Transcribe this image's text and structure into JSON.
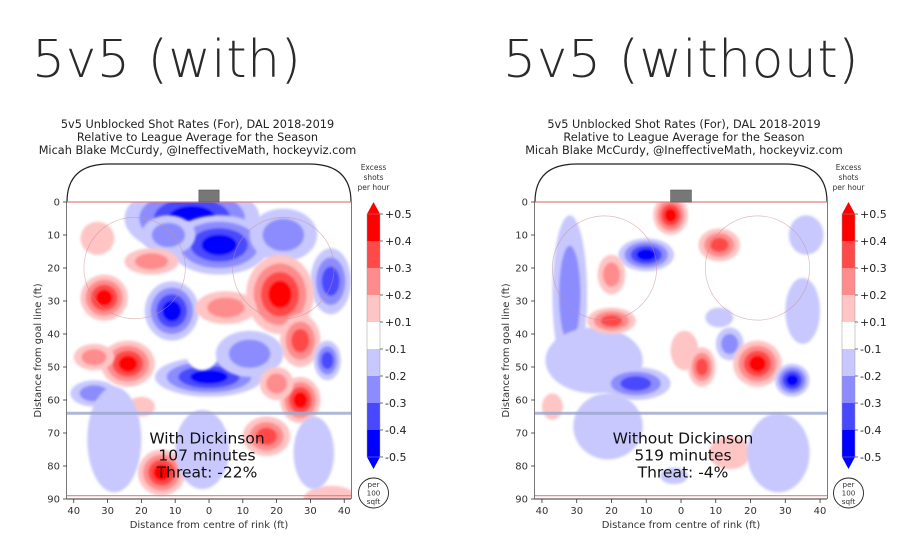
{
  "headings": {
    "left": "5v5 (with)",
    "right": "5v5 (without)"
  },
  "colors": {
    "levels": [
      "#0000ff",
      "#4848ff",
      "#8c8cff",
      "#c8c8ff",
      "#ffffff",
      "#ffc4c4",
      "#ff8c8c",
      "#ff4a4a",
      "#ff0000"
    ],
    "neutral_band": "#ffffff",
    "rink_line": "#222222",
    "goal_line": "#e08080",
    "blue_line": "#9aa6cc",
    "net": "#777777"
  },
  "chart_data": [
    {
      "type": "heatmap",
      "panel": "left",
      "title_lines": [
        "5v5 Unblocked Shot Rates (For), DAL 2018-2019",
        "Relative to League Average for the Season",
        "Micah Blake McCurdy, @IneffectiveMath, hockeyviz.com"
      ],
      "xlabel": "Distance from centre of rink (ft)",
      "ylabel": "Distance from goal line (ft)",
      "xticks": [
        "40",
        "30",
        "20",
        "10",
        "0",
        "10",
        "20",
        "30",
        "40"
      ],
      "yticks": [
        "0",
        "10",
        "20",
        "30",
        "40",
        "50",
        "60",
        "70",
        "80",
        "90"
      ],
      "xlim": [
        -42,
        42
      ],
      "ylim": [
        0,
        90
      ],
      "annotation": [
        "With Dickinson",
        "107 minutes",
        "Threat: -22%"
      ],
      "colorbar": {
        "title": [
          "Excess",
          "shots",
          "per hour"
        ],
        "ticks": [
          "+0.5",
          "+0.4",
          "+0.3",
          "+0.2",
          "+0.1",
          "-0.1",
          "-0.2",
          "-0.3",
          "-0.4",
          "-0.5"
        ],
        "unit": [
          "per",
          "100",
          "sqft"
        ]
      },
      "blobs": [
        {
          "x": -5,
          "y": 5,
          "rx": 20,
          "ry": 11,
          "v": -0.5
        },
        {
          "x": 3,
          "y": 13,
          "rx": 15,
          "ry": 9,
          "v": -0.5
        },
        {
          "x": -12,
          "y": 10,
          "rx": 8,
          "ry": 6,
          "v": -0.3
        },
        {
          "x": 22,
          "y": 10,
          "rx": 10,
          "ry": 8,
          "v": -0.3
        },
        {
          "x": 36,
          "y": 24,
          "rx": 6,
          "ry": 10,
          "v": -0.4
        },
        {
          "x": -33,
          "y": 11,
          "rx": 5,
          "ry": 5,
          "v": 0.1
        },
        {
          "x": -17,
          "y": 18,
          "rx": 8,
          "ry": 4,
          "v": 0.3
        },
        {
          "x": -31,
          "y": 29,
          "rx": 7,
          "ry": 7,
          "v": 0.5
        },
        {
          "x": -11,
          "y": 33,
          "rx": 8,
          "ry": 9,
          "v": -0.5
        },
        {
          "x": 21,
          "y": 28,
          "rx": 10,
          "ry": 12,
          "v": 0.5
        },
        {
          "x": 5,
          "y": 32,
          "rx": 9,
          "ry": 5,
          "v": 0.3
        },
        {
          "x": 27,
          "y": 42,
          "rx": 6,
          "ry": 8,
          "v": 0.4
        },
        {
          "x": 0,
          "y": 53,
          "rx": 16,
          "ry": 6,
          "v": -0.5
        },
        {
          "x": -2,
          "y": 45,
          "rx": 5,
          "ry": 6,
          "v": 0.0
        },
        {
          "x": 12,
          "y": 46,
          "rx": 10,
          "ry": 7,
          "v": -0.3
        },
        {
          "x": -24,
          "y": 49,
          "rx": 8,
          "ry": 7,
          "v": 0.5
        },
        {
          "x": -34,
          "y": 47,
          "rx": 6,
          "ry": 4,
          "v": 0.3
        },
        {
          "x": -34,
          "y": 58,
          "rx": 7,
          "ry": 4,
          "v": -0.3
        },
        {
          "x": -20,
          "y": 62,
          "rx": 4,
          "ry": 3,
          "v": 0.2
        },
        {
          "x": 35,
          "y": 48,
          "rx": 4,
          "ry": 6,
          "v": -0.4
        },
        {
          "x": 27,
          "y": 60,
          "rx": 6,
          "ry": 7,
          "v": 0.5
        },
        {
          "x": 20,
          "y": 55,
          "rx": 5,
          "ry": 5,
          "v": 0.3
        },
        {
          "x": 17,
          "y": 71,
          "rx": 7,
          "ry": 6,
          "v": 0.4
        },
        {
          "x": -14,
          "y": 82,
          "rx": 7,
          "ry": 7,
          "v": 0.5
        },
        {
          "x": 36,
          "y": 90,
          "rx": 8,
          "ry": 4,
          "v": 0.2
        },
        {
          "x": -28,
          "y": 72,
          "rx": 8,
          "ry": 16,
          "v": -0.1
        },
        {
          "x": -2,
          "y": 75,
          "rx": 8,
          "ry": 12,
          "v": -0.1
        },
        {
          "x": 31,
          "y": 76,
          "rx": 6,
          "ry": 11,
          "v": -0.1
        }
      ]
    },
    {
      "type": "heatmap",
      "panel": "right",
      "title_lines": [
        "5v5 Unblocked Shot Rates (For), DAL 2018-2019",
        "Relative to League Average for the Season",
        "Micah Blake McCurdy, @IneffectiveMath, hockeyviz.com"
      ],
      "xlabel": "Distance from centre of rink (ft)",
      "ylabel": "Distance from goal line (ft)",
      "xticks": [
        "40",
        "30",
        "20",
        "10",
        "0",
        "10",
        "20",
        "30",
        "40"
      ],
      "yticks": [
        "0",
        "10",
        "20",
        "30",
        "40",
        "50",
        "60",
        "70",
        "80",
        "90"
      ],
      "xlim": [
        -42,
        42
      ],
      "ylim": [
        0,
        90
      ],
      "annotation": [
        "Without Dickinson",
        "519 minutes",
        "Threat: -4%"
      ],
      "colorbar": {
        "title": [
          "Excess",
          "shots",
          "per hour"
        ],
        "ticks": [
          "+0.5",
          "+0.4",
          "+0.3",
          "+0.2",
          "+0.1",
          "-0.1",
          "-0.2",
          "-0.3",
          "-0.4",
          "-0.5"
        ],
        "unit": [
          "per",
          "100",
          "sqft"
        ]
      },
      "blobs": [
        {
          "x": -3,
          "y": 4,
          "rx": 5,
          "ry": 6,
          "v": 0.5
        },
        {
          "x": 11,
          "y": 13,
          "rx": 6,
          "ry": 5,
          "v": 0.4
        },
        {
          "x": -10,
          "y": 16,
          "rx": 8,
          "ry": 5,
          "v": -0.5
        },
        {
          "x": -32,
          "y": 28,
          "rx": 5,
          "ry": 24,
          "v": -0.3
        },
        {
          "x": -25,
          "y": 48,
          "rx": 14,
          "ry": 10,
          "v": -0.2
        },
        {
          "x": -13,
          "y": 55,
          "rx": 10,
          "ry": 5,
          "v": -0.4
        },
        {
          "x": -20,
          "y": 22,
          "rx": 4,
          "ry": 6,
          "v": 0.3
        },
        {
          "x": -20,
          "y": 36,
          "rx": 7,
          "ry": 4,
          "v": 0.4
        },
        {
          "x": 36,
          "y": 10,
          "rx": 5,
          "ry": 6,
          "v": -0.2
        },
        {
          "x": 35,
          "y": 33,
          "rx": 5,
          "ry": 10,
          "v": -0.2
        },
        {
          "x": 11,
          "y": 35,
          "rx": 4,
          "ry": 3,
          "v": -0.2
        },
        {
          "x": 1,
          "y": 45,
          "rx": 4,
          "ry": 6,
          "v": 0.1
        },
        {
          "x": 6,
          "y": 50,
          "rx": 4,
          "ry": 6,
          "v": 0.4
        },
        {
          "x": 14,
          "y": 43,
          "rx": 4,
          "ry": 5,
          "v": -0.3
        },
        {
          "x": 22,
          "y": 49,
          "rx": 7,
          "ry": 7,
          "v": 0.5
        },
        {
          "x": 32,
          "y": 54,
          "rx": 5,
          "ry": 5,
          "v": -0.5
        },
        {
          "x": -37,
          "y": 62,
          "rx": 3,
          "ry": 4,
          "v": 0.2
        },
        {
          "x": 14,
          "y": 76,
          "rx": 6,
          "ry": 5,
          "v": 0.2
        },
        {
          "x": -2,
          "y": 83,
          "rx": 4,
          "ry": 2.5,
          "v": -0.2
        },
        {
          "x": -21,
          "y": 68,
          "rx": 10,
          "ry": 10,
          "v": -0.1
        },
        {
          "x": 28,
          "y": 76,
          "rx": 9,
          "ry": 12,
          "v": -0.1
        }
      ]
    }
  ]
}
